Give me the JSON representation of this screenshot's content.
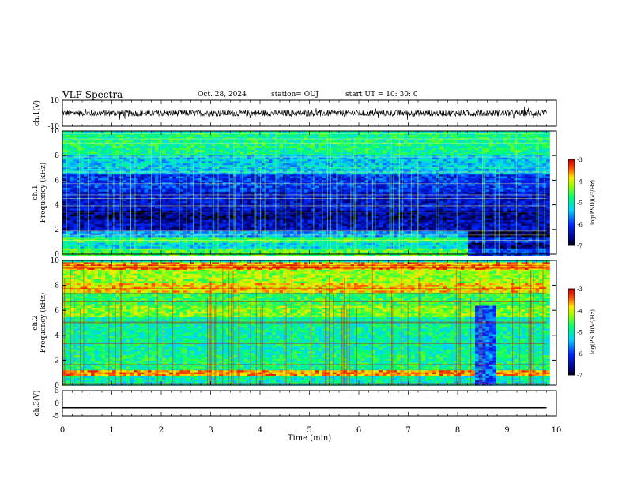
{
  "header": {
    "title": "VLF Spectra",
    "date": "Oct. 28, 2024",
    "station": "station= OUJ",
    "start": "start  UT =   10: 30: 0"
  },
  "chart_data": [
    {
      "type": "line",
      "panel": "ch1-waveform",
      "ylabel": "ch.1(V)",
      "ylim": [
        -10,
        10
      ],
      "yticks": [
        "10",
        "-10"
      ],
      "x_range_min": [
        0,
        9.8
      ],
      "amplitude_range_V": [
        -3.5,
        3.5
      ],
      "color": "#000000"
    },
    {
      "type": "heatmap",
      "panel": "ch1-spectrogram",
      "ylabel": "ch.1\nFrequency (kHz)",
      "ylim": [
        0,
        10
      ],
      "yticks": [
        "0",
        "2",
        "4",
        "6",
        "8",
        "10"
      ],
      "x_range_min": [
        0,
        9.8
      ],
      "colorbar": {
        "label": "log(PSD)(V²/Hz)",
        "range": [
          -7,
          -3
        ],
        "ticks": [
          "-3",
          "-4",
          "-5",
          "-6",
          "-7"
        ]
      },
      "bands_kHz_log10psd": [
        {
          "f": [
            0,
            0.5
          ],
          "v": -4.5
        },
        {
          "f": [
            0.5,
            1.0
          ],
          "v": -5.2
        },
        {
          "f": [
            1.0,
            1.4
          ],
          "v": -4.6
        },
        {
          "f": [
            1.4,
            2.0
          ],
          "v": -5.5
        },
        {
          "f": [
            2.0,
            2.8
          ],
          "v": -6.4
        },
        {
          "f": [
            2.8,
            3.6
          ],
          "v": -6.6
        },
        {
          "f": [
            3.6,
            5.2
          ],
          "v": -6.3
        },
        {
          "f": [
            5.2,
            6.5
          ],
          "v": -6.0
        },
        {
          "f": [
            6.5,
            8.0
          ],
          "v": -5.3
        },
        {
          "f": [
            8.0,
            10.0
          ],
          "v": -4.8
        }
      ],
      "change_time_min": 8.15
    },
    {
      "type": "heatmap",
      "panel": "ch2-spectrogram",
      "ylabel": "ch.2\nFrequency (kHz)",
      "ylim": [
        0,
        10
      ],
      "yticks": [
        "0",
        "2",
        "4",
        "6",
        "8",
        "10"
      ],
      "x_range_min": [
        0,
        9.8
      ],
      "colorbar": {
        "label": "log(PSD)(V²/Hz)",
        "range": [
          -7,
          -3
        ],
        "ticks": [
          "-3",
          "-4",
          "-5",
          "-6",
          "-7"
        ]
      },
      "bands_kHz_log10psd": [
        {
          "f": [
            0,
            0.8
          ],
          "v": -5.0
        },
        {
          "f": [
            0.8,
            1.3
          ],
          "v": -3.6
        },
        {
          "f": [
            1.3,
            2.5
          ],
          "v": -4.8
        },
        {
          "f": [
            2.5,
            4.0
          ],
          "v": -4.9
        },
        {
          "f": [
            4.0,
            5.5
          ],
          "v": -4.9
        },
        {
          "f": [
            5.5,
            6.5
          ],
          "v": -4.3
        },
        {
          "f": [
            6.5,
            7.5
          ],
          "v": -4.6
        },
        {
          "f": [
            7.5,
            8.2
          ],
          "v": -3.8
        },
        {
          "f": [
            8.2,
            9.3
          ],
          "v": -4.2
        },
        {
          "f": [
            9.3,
            10.0
          ],
          "v": -3.6
        }
      ],
      "dropout_min": [
        8.3,
        8.75
      ],
      "dropout_f_kHz": [
        0,
        6.5
      ],
      "dropout_v": -5.8
    },
    {
      "type": "line",
      "panel": "ch3-waveform",
      "ylabel": "ch.3(V)",
      "ylim": [
        -5,
        5
      ],
      "yticks": [
        "5",
        "0",
        "-5"
      ],
      "x": [
        0,
        9.8
      ],
      "values": [
        -1.8,
        -1.8
      ],
      "color": "#000000"
    }
  ],
  "xaxis": {
    "label": "Time (min)",
    "ticks": [
      "0",
      "1",
      "2",
      "3",
      "4",
      "5",
      "6",
      "7",
      "8",
      "9",
      "10"
    ],
    "range": [
      0,
      10
    ]
  }
}
